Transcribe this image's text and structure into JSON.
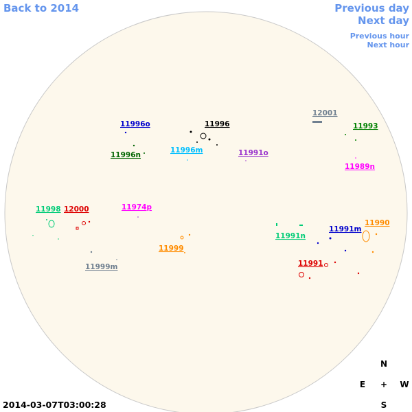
{
  "nav": {
    "back": "Back to 2014",
    "previous_day": "Previous day",
    "next_day": "Next day",
    "previous_hour": "Previous hour",
    "next_hour": "Next hour"
  },
  "regions": [
    {
      "label": "11996o",
      "color": "#0000cc"
    },
    {
      "label": "11996",
      "color": "#000000"
    },
    {
      "label": "12001",
      "color": "#708090"
    },
    {
      "label": "11993",
      "color": "#008000"
    },
    {
      "label": "11996n",
      "color": "#006400"
    },
    {
      "label": "11996m",
      "color": "#00bfff"
    },
    {
      "label": "11991o",
      "color": "#9932cc"
    },
    {
      "label": "11989n",
      "color": "#ff00ff"
    },
    {
      "label": "11998",
      "color": "#00cc77"
    },
    {
      "label": "12000",
      "color": "#dd0000"
    },
    {
      "label": "11974p",
      "color": "#ff00ff"
    },
    {
      "label": "11990",
      "color": "#ff8c00"
    },
    {
      "label": "11991m",
      "color": "#0000cc"
    },
    {
      "label": "11991n",
      "color": "#00cc77"
    },
    {
      "label": "11999",
      "color": "#ff8c00"
    },
    {
      "label": "11999m",
      "color": "#708090"
    },
    {
      "label": "11991",
      "color": "#dd0000"
    }
  ],
  "compass": {
    "north": "N",
    "east": "E",
    "center": "+",
    "west": "W",
    "south": "S"
  },
  "timestamp": "2014-03-07T03:00:28"
}
